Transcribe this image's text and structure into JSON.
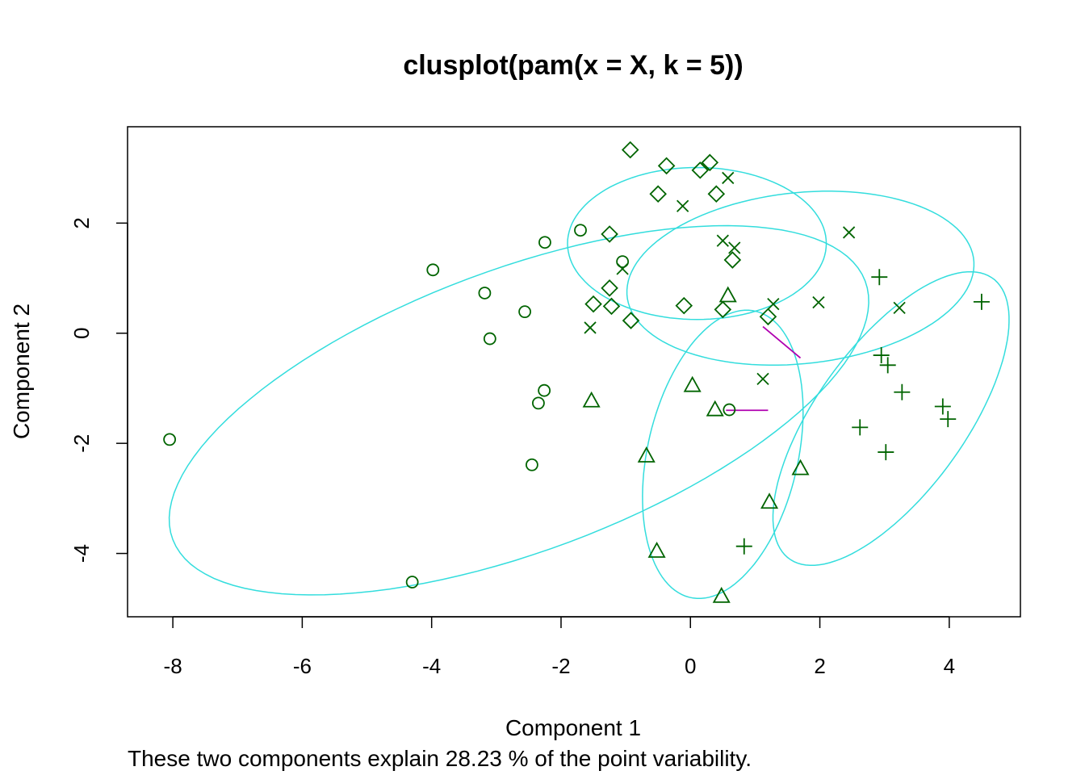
{
  "chart_data": {
    "type": "scatter",
    "title": "clusplot(pam(x = X, k = 5))",
    "xlabel": "Component 1",
    "ylabel": "Component 2",
    "subtitle": "These two components explain 28.23 % of the point variability.",
    "xlim": [
      -8.7,
      5.1
    ],
    "ylim": [
      -5.15,
      3.75
    ],
    "xticks": [
      -8,
      -6,
      -4,
      -2,
      0,
      2,
      4
    ],
    "yticks": [
      -4,
      -2,
      0,
      2
    ],
    "grid": false,
    "legend": "none",
    "colors": {
      "points": "#006400",
      "ellipse": "#33dddd",
      "link": "#b000b0"
    },
    "series": [
      {
        "symbol": "circle",
        "points": [
          [
            -8.05,
            -1.93
          ],
          [
            -4.3,
            -4.52
          ],
          [
            -3.98,
            1.15
          ],
          [
            -3.18,
            0.73
          ],
          [
            -3.1,
            -0.1
          ],
          [
            -2.56,
            0.39
          ],
          [
            -2.45,
            -2.39
          ],
          [
            -2.35,
            -1.27
          ],
          [
            -2.26,
            -1.04
          ],
          [
            -2.25,
            1.65
          ],
          [
            -1.7,
            1.87
          ],
          [
            -1.05,
            1.3
          ],
          [
            0.6,
            -1.39
          ]
        ]
      },
      {
        "symbol": "diamond",
        "points": [
          [
            -0.93,
            3.33
          ],
          [
            -0.37,
            3.04
          ],
          [
            0.15,
            2.96
          ],
          [
            0.3,
            3.1
          ],
          [
            -0.5,
            2.53
          ],
          [
            0.4,
            2.53
          ],
          [
            -1.25,
            1.8
          ],
          [
            0.65,
            1.33
          ],
          [
            -1.25,
            0.82
          ],
          [
            -1.5,
            0.53
          ],
          [
            -1.22,
            0.49
          ],
          [
            -0.1,
            0.5
          ],
          [
            0.5,
            0.43
          ],
          [
            -0.92,
            0.23
          ],
          [
            1.2,
            0.3
          ]
        ]
      },
      {
        "symbol": "x",
        "points": [
          [
            0.58,
            2.82
          ],
          [
            -0.12,
            2.31
          ],
          [
            0.5,
            1.68
          ],
          [
            0.68,
            1.55
          ],
          [
            -1.05,
            1.17
          ],
          [
            -1.55,
            0.1
          ],
          [
            1.28,
            0.53
          ],
          [
            1.98,
            0.56
          ],
          [
            2.45,
            1.83
          ],
          [
            3.23,
            0.46
          ],
          [
            1.12,
            -0.83
          ]
        ]
      },
      {
        "symbol": "plus",
        "points": [
          [
            2.92,
            1.02
          ],
          [
            4.5,
            0.57
          ],
          [
            2.95,
            -0.4
          ],
          [
            3.05,
            -0.58
          ],
          [
            3.27,
            -1.07
          ],
          [
            3.9,
            -1.33
          ],
          [
            3.98,
            -1.56
          ],
          [
            2.62,
            -1.71
          ],
          [
            3.02,
            -2.16
          ],
          [
            0.83,
            -3.87
          ]
        ]
      },
      {
        "symbol": "triangle",
        "points": [
          [
            -1.53,
            -1.23
          ],
          [
            0.03,
            -0.95
          ],
          [
            0.38,
            -1.39
          ],
          [
            -0.68,
            -2.23
          ],
          [
            1.7,
            -2.46
          ],
          [
            1.22,
            -3.07
          ],
          [
            -0.52,
            -3.96
          ],
          [
            0.48,
            -4.78
          ],
          [
            0.58,
            0.68
          ]
        ]
      }
    ],
    "ellipses": [
      {
        "cx": -2.65,
        "cy": -1.4,
        "a": 5.85,
        "b": 2.5,
        "angle_deg": 25
      },
      {
        "cx": 0.1,
        "cy": 1.63,
        "a": 2.0,
        "b": 1.38,
        "angle_deg": 0
      },
      {
        "cx": 1.7,
        "cy": 1.0,
        "a": 2.7,
        "b": 1.55,
        "angle_deg": 8
      },
      {
        "cx": 3.1,
        "cy": -1.55,
        "a": 3.0,
        "b": 1.2,
        "angle_deg": 60
      },
      {
        "cx": 0.5,
        "cy": -2.2,
        "a": 2.65,
        "b": 1.17,
        "angle_deg": 80
      }
    ],
    "links": [
      {
        "x1": 1.12,
        "y1": 0.12,
        "x2": 1.7,
        "y2": -0.45
      },
      {
        "x1": 0.55,
        "y1": -1.4,
        "x2": 1.2,
        "y2": -1.4
      }
    ]
  }
}
